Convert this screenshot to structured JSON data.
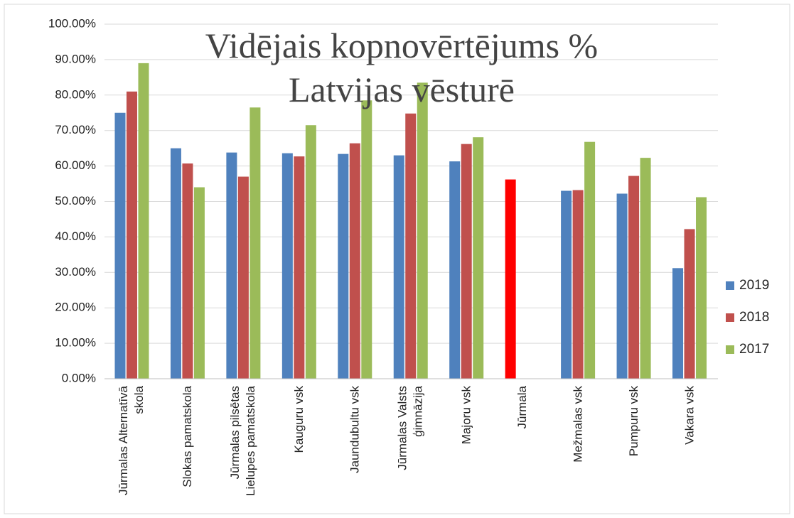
{
  "chart_data": {
    "type": "bar",
    "title": "Vidējais kopnovērtējums % Latvijas vēsturē",
    "categories": [
      "Jūrmalas Alternatīvā skola",
      "Slokas pamatskola",
      "Jūrmalas pilsētas Lielupes pamatskola",
      "Kauguru vsk",
      "Jaundubultu vsk",
      "Jūrmalas Valsts ģimnāzija",
      "Majoru vsk",
      "Jūrmala",
      "Mežmalas vsk",
      "Pumpuru vsk",
      "Vakara vsk"
    ],
    "series": [
      {
        "name": "2019",
        "color": "#4f81bd",
        "values": [
          75,
          65,
          63.8,
          63.6,
          63.4,
          63,
          61.3,
          56.2,
          53,
          52.2,
          31.2
        ],
        "colors": [
          "#4f81bd",
          "#4f81bd",
          "#4f81bd",
          "#4f81bd",
          "#4f81bd",
          "#4f81bd",
          "#4f81bd",
          "#ff0000",
          "#4f81bd",
          "#4f81bd",
          "#4f81bd"
        ]
      },
      {
        "name": "2018",
        "color": "#c0504d",
        "values": [
          81,
          60.7,
          57,
          62.7,
          66.4,
          74.8,
          66.2,
          null,
          53.2,
          57.2,
          42.2
        ]
      },
      {
        "name": "2017",
        "color": "#9bbb59",
        "values": [
          89,
          54,
          76.5,
          71.5,
          78.5,
          83.5,
          68.1,
          null,
          66.8,
          62.3,
          51.2
        ]
      }
    ],
    "ylim": [
      0,
      100
    ],
    "yticks": [
      {
        "value": 0,
        "label": "0.00%"
      },
      {
        "value": 10,
        "label": "10.00%"
      },
      {
        "value": 20,
        "label": "20.00%"
      },
      {
        "value": 30,
        "label": "30.00%"
      },
      {
        "value": 40,
        "label": "40.00%"
      },
      {
        "value": 50,
        "label": "50.00%"
      },
      {
        "value": 60,
        "label": "60.00%"
      },
      {
        "value": 70,
        "label": "70.00%"
      },
      {
        "value": 80,
        "label": "80.00%"
      },
      {
        "value": 90,
        "label": "90.00%"
      },
      {
        "value": 100,
        "label": "100.00%"
      }
    ],
    "grid": true,
    "legend": "right"
  }
}
